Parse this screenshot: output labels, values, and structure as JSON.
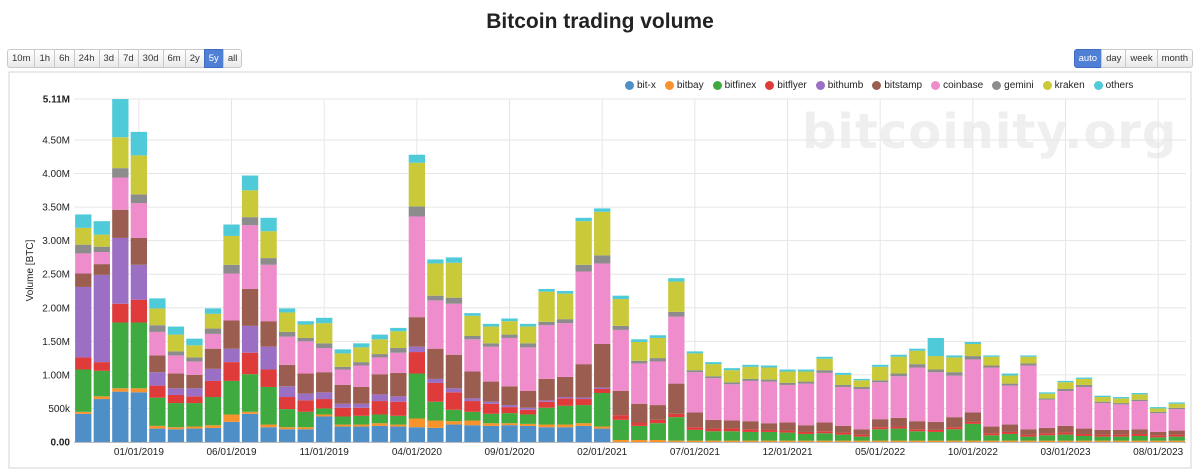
{
  "page": {
    "title": "Bitcoin trading volume",
    "watermark": "bitcoinity.org"
  },
  "range_buttons": [
    {
      "label": "10m",
      "active": false
    },
    {
      "label": "1h",
      "active": false
    },
    {
      "label": "6h",
      "active": false
    },
    {
      "label": "24h",
      "active": false
    },
    {
      "label": "3d",
      "active": false
    },
    {
      "label": "7d",
      "active": false
    },
    {
      "label": "30d",
      "active": false
    },
    {
      "label": "6m",
      "active": false
    },
    {
      "label": "2y",
      "active": false
    },
    {
      "label": "5y",
      "active": true
    },
    {
      "label": "all",
      "active": false
    }
  ],
  "group_buttons": [
    {
      "label": "auto",
      "active": true
    },
    {
      "label": "day",
      "active": false
    },
    {
      "label": "week",
      "active": false
    },
    {
      "label": "month",
      "active": false
    }
  ],
  "chart_data": {
    "type": "bar",
    "stacked": true,
    "title": "Bitcoin trading volume",
    "ylabel": "Volume [BTC]",
    "ylim": [
      0,
      5.11
    ],
    "unit": "M",
    "yticks": [
      "0.00",
      "500k",
      "1.00M",
      "1.50M",
      "2.00M",
      "2.50M",
      "3.00M",
      "3.50M",
      "4.00M",
      "4.50M",
      "5.11M"
    ],
    "ytick_values": [
      0,
      0.5,
      1.0,
      1.5,
      2.0,
      2.5,
      3.0,
      3.5,
      4.0,
      4.5,
      5.11
    ],
    "xticks": [
      {
        "label": "01/01/2019",
        "index": 3.5
      },
      {
        "label": "06/01/2019",
        "index": 8.5
      },
      {
        "label": "11/01/2019",
        "index": 13.5
      },
      {
        "label": "04/01/2020",
        "index": 18.5
      },
      {
        "label": "09/01/2020",
        "index": 23.5
      },
      {
        "label": "02/01/2021",
        "index": 28.5
      },
      {
        "label": "07/01/2021",
        "index": 33.5
      },
      {
        "label": "12/01/2021",
        "index": 38.5
      },
      {
        "label": "05/01/2022",
        "index": 43.5
      },
      {
        "label": "10/01/2022",
        "index": 48.5
      },
      {
        "label": "03/01/2023",
        "index": 53.5
      },
      {
        "label": "08/01/2023",
        "index": 58.5
      }
    ],
    "legend_position": "top-right",
    "colors": {
      "bit-x": "#4f8fc7",
      "bitbay": "#f7932d",
      "bitfinex": "#3faa3f",
      "bitflyer": "#df3b3b",
      "bithumb": "#9a6fc4",
      "bitstamp": "#9a5d4f",
      "coinbase": "#ee8ccc",
      "gemini": "#8c8c8c",
      "kraken": "#c9c93a",
      "others": "#4fcad8"
    },
    "series": [
      {
        "name": "bit-x",
        "values": [
          0.42,
          0.64,
          0.75,
          0.74,
          0.2,
          0.19,
          0.2,
          0.21,
          0.3,
          0.42,
          0.22,
          0.19,
          0.19,
          0.38,
          0.23,
          0.23,
          0.24,
          0.23,
          0.22,
          0.21,
          0.26,
          0.25,
          0.24,
          0.25,
          0.24,
          0.22,
          0.22,
          0.24,
          0.2,
          0,
          0,
          0,
          0,
          0,
          0,
          0,
          0,
          0,
          0,
          0,
          0,
          0,
          0,
          0,
          0,
          0,
          0,
          0,
          0,
          0,
          0,
          0,
          0,
          0,
          0,
          0,
          0,
          0,
          0,
          0
        ]
      },
      {
        "name": "bitbay",
        "values": [
          0.03,
          0.04,
          0.05,
          0.06,
          0.04,
          0.03,
          0.03,
          0.04,
          0.11,
          0.03,
          0.04,
          0.03,
          0.03,
          0.03,
          0.03,
          0.03,
          0.04,
          0.03,
          0.13,
          0.11,
          0.05,
          0.07,
          0.04,
          0.03,
          0.03,
          0.04,
          0.04,
          0.04,
          0.03,
          0.03,
          0.03,
          0.03,
          0.02,
          0.02,
          0.02,
          0.02,
          0.02,
          0.02,
          0.02,
          0.02,
          0.02,
          0.02,
          0.02,
          0.02,
          0.02,
          0.02,
          0.02,
          0.02,
          0.02,
          0.02,
          0.02,
          0.02,
          0.02,
          0.02,
          0.02,
          0.02,
          0.02,
          0.02,
          0.02,
          0.02
        ]
      },
      {
        "name": "bitfinex",
        "values": [
          0.63,
          0.38,
          0.98,
          0.98,
          0.42,
          0.36,
          0.35,
          0.42,
          0.5,
          0.56,
          0.56,
          0.27,
          0.23,
          0.09,
          0.12,
          0.13,
          0.13,
          0.13,
          0.67,
          0.28,
          0.17,
          0.13,
          0.14,
          0.15,
          0.14,
          0.25,
          0.28,
          0.27,
          0.5,
          0.3,
          0.21,
          0.25,
          0.35,
          0.16,
          0.14,
          0.14,
          0.13,
          0.13,
          0.12,
          0.1,
          0.11,
          0.09,
          0.06,
          0.17,
          0.18,
          0.14,
          0.13,
          0.17,
          0.25,
          0.08,
          0.1,
          0.06,
          0.08,
          0.09,
          0.07,
          0.06,
          0.06,
          0.07,
          0.05,
          0.06
        ]
      },
      {
        "name": "bitflyer",
        "values": [
          0.18,
          0.13,
          0.28,
          0.34,
          0.18,
          0.12,
          0.1,
          0.24,
          0.28,
          0.32,
          0.26,
          0.18,
          0.17,
          0.14,
          0.13,
          0.12,
          0.2,
          0.21,
          0.32,
          0.28,
          0.26,
          0.16,
          0.15,
          0.09,
          0.07,
          0.09,
          0.11,
          0.09,
          0.06,
          0.07,
          0.05,
          0.05,
          0.05,
          0.04,
          0.04,
          0.04,
          0.04,
          0.03,
          0.03,
          0.03,
          0.03,
          0.03,
          0.03,
          0.03,
          0.03,
          0.03,
          0.03,
          0.03,
          0.03,
          0.03,
          0.03,
          0.03,
          0.03,
          0.03,
          0.03,
          0.03,
          0.03,
          0.03,
          0.03,
          0.03
        ]
      },
      {
        "name": "bithumb",
        "values": [
          1.05,
          1.3,
          0.98,
          0.52,
          0.2,
          0.1,
          0.12,
          0.18,
          0.2,
          0.4,
          0.34,
          0.16,
          0.1,
          0.1,
          0.06,
          0.06,
          0.1,
          0.08,
          0.08,
          0.06,
          0.06,
          0.04,
          0.03,
          0.03,
          0.03,
          0.02,
          0.02,
          0.02,
          0.02,
          0,
          0,
          0,
          0,
          0,
          0,
          0,
          0,
          0,
          0,
          0,
          0,
          0,
          0,
          0,
          0,
          0,
          0,
          0,
          0,
          0,
          0,
          0,
          0,
          0,
          0,
          0,
          0,
          0,
          0,
          0
        ]
      },
      {
        "name": "bitstamp",
        "values": [
          0.2,
          0.16,
          0.42,
          0.4,
          0.25,
          0.22,
          0.2,
          0.3,
          0.42,
          0.55,
          0.38,
          0.32,
          0.3,
          0.3,
          0.28,
          0.25,
          0.3,
          0.35,
          0.44,
          0.45,
          0.5,
          0.4,
          0.3,
          0.28,
          0.25,
          0.32,
          0.3,
          0.5,
          0.65,
          0.36,
          0.28,
          0.22,
          0.45,
          0.22,
          0.13,
          0.12,
          0.12,
          0.1,
          0.12,
          0.1,
          0.13,
          0.1,
          0.08,
          0.12,
          0.13,
          0.12,
          0.12,
          0.15,
          0.14,
          0.1,
          0.11,
          0.08,
          0.08,
          0.1,
          0.08,
          0.07,
          0.07,
          0.07,
          0.05,
          0.06
        ]
      },
      {
        "name": "coinbase",
        "values": [
          0.3,
          0.18,
          0.48,
          0.52,
          0.35,
          0.27,
          0.2,
          0.22,
          0.7,
          0.95,
          0.84,
          0.42,
          0.48,
          0.36,
          0.23,
          0.32,
          0.25,
          0.3,
          1.5,
          0.72,
          0.76,
          0.48,
          0.52,
          0.72,
          0.65,
          0.8,
          0.8,
          1.38,
          1.2,
          0.91,
          0.6,
          0.65,
          1.0,
          0.6,
          0.62,
          0.54,
          0.6,
          0.62,
          0.56,
          0.62,
          0.74,
          0.58,
          0.6,
          0.55,
          0.62,
          0.8,
          0.74,
          0.62,
          0.79,
          0.88,
          0.58,
          0.95,
          0.42,
          0.52,
          0.62,
          0.4,
          0.38,
          0.42,
          0.28,
          0.32
        ]
      },
      {
        "name": "gemini",
        "values": [
          0.13,
          0.08,
          0.14,
          0.13,
          0.1,
          0.06,
          0.06,
          0.08,
          0.13,
          0.12,
          0.1,
          0.07,
          0.05,
          0.07,
          0.04,
          0.05,
          0.05,
          0.07,
          0.15,
          0.07,
          0.09,
          0.05,
          0.05,
          0.05,
          0.06,
          0.05,
          0.06,
          0.1,
          0.12,
          0.06,
          0.04,
          0.05,
          0.07,
          0.03,
          0.03,
          0.03,
          0.03,
          0.03,
          0.03,
          0.03,
          0.04,
          0.03,
          0.03,
          0.03,
          0.04,
          0.05,
          0.04,
          0.05,
          0.05,
          0.03,
          0.03,
          0.03,
          0.02,
          0.03,
          0.03,
          0.02,
          0.02,
          0.02,
          0.02,
          0.02
        ]
      },
      {
        "name": "kraken",
        "values": [
          0.25,
          0.18,
          0.46,
          0.58,
          0.25,
          0.25,
          0.18,
          0.22,
          0.43,
          0.4,
          0.4,
          0.29,
          0.2,
          0.3,
          0.2,
          0.22,
          0.22,
          0.25,
          0.65,
          0.48,
          0.52,
          0.3,
          0.25,
          0.2,
          0.25,
          0.45,
          0.38,
          0.65,
          0.65,
          0.4,
          0.28,
          0.3,
          0.45,
          0.25,
          0.18,
          0.18,
          0.18,
          0.18,
          0.17,
          0.15,
          0.17,
          0.15,
          0.1,
          0.2,
          0.25,
          0.2,
          0.2,
          0.22,
          0.18,
          0.13,
          0.12,
          0.1,
          0.07,
          0.1,
          0.09,
          0.07,
          0.07,
          0.08,
          0.05,
          0.06
        ]
      },
      {
        "name": "others",
        "values": [
          0.2,
          0.2,
          0.57,
          0.35,
          0.15,
          0.12,
          0.1,
          0.08,
          0.17,
          0.22,
          0.2,
          0.06,
          0.05,
          0.08,
          0.06,
          0.06,
          0.07,
          0.05,
          0.12,
          0.06,
          0.08,
          0.04,
          0.04,
          0.04,
          0.04,
          0.04,
          0.04,
          0.05,
          0.05,
          0.05,
          0.04,
          0.04,
          0.05,
          0.03,
          0.03,
          0.03,
          0.03,
          0.03,
          0.03,
          0.03,
          0.03,
          0.03,
          0.02,
          0.03,
          0.03,
          0.03,
          0.27,
          0.03,
          0.03,
          0.02,
          0.03,
          0.02,
          0.02,
          0.02,
          0.02,
          0.02,
          0.02,
          0.02,
          0.02,
          0.02
        ]
      }
    ]
  }
}
